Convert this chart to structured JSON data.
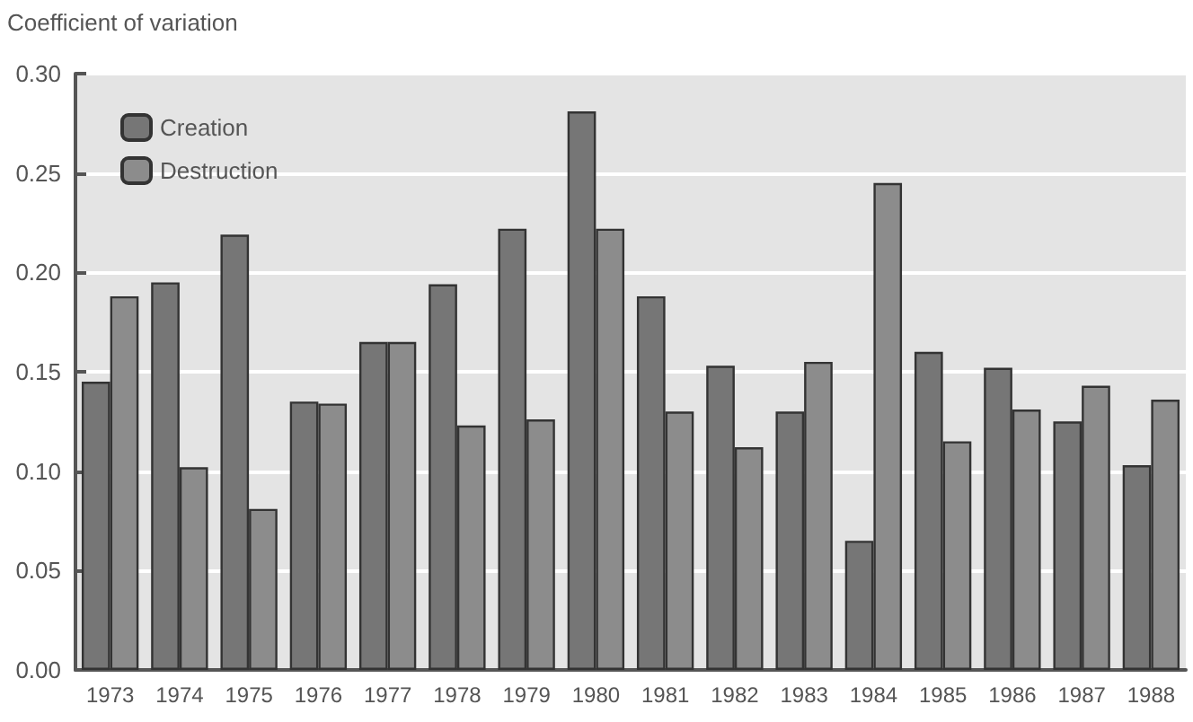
{
  "chart_data": {
    "type": "bar",
    "ylabel": "Coefficient of variation",
    "categories": [
      "1973",
      "1974",
      "1975",
      "1976",
      "1977",
      "1978",
      "1979",
      "1980",
      "1981",
      "1982",
      "1983",
      "1984",
      "1985",
      "1986",
      "1987",
      "1988"
    ],
    "series": [
      {
        "name": "Creation",
        "color": "#767676",
        "values": [
          0.145,
          0.195,
          0.219,
          0.135,
          0.165,
          0.194,
          0.222,
          0.281,
          0.188,
          0.153,
          0.13,
          0.065,
          0.16,
          0.152,
          0.125,
          0.103
        ]
      },
      {
        "name": "Destruction",
        "color": "#8c8c8c",
        "values": [
          0.188,
          0.102,
          0.081,
          0.134,
          0.165,
          0.123,
          0.126,
          0.222,
          0.13,
          0.112,
          0.155,
          0.245,
          0.115,
          0.131,
          0.143,
          0.136
        ]
      }
    ],
    "ylim": [
      0,
      0.3
    ],
    "yticks": [
      {
        "value": 0,
        "label": "0.00"
      },
      {
        "value": 0.05,
        "label": "0.05"
      },
      {
        "value": 0.1,
        "label": "0.10"
      },
      {
        "value": 0.15,
        "label": "0.15"
      },
      {
        "value": 0.2,
        "label": "0.20"
      },
      {
        "value": 0.25,
        "label": "0.25"
      },
      {
        "value": 0.3,
        "label": "0.30"
      }
    ],
    "grid": "y",
    "legend": "top left"
  }
}
